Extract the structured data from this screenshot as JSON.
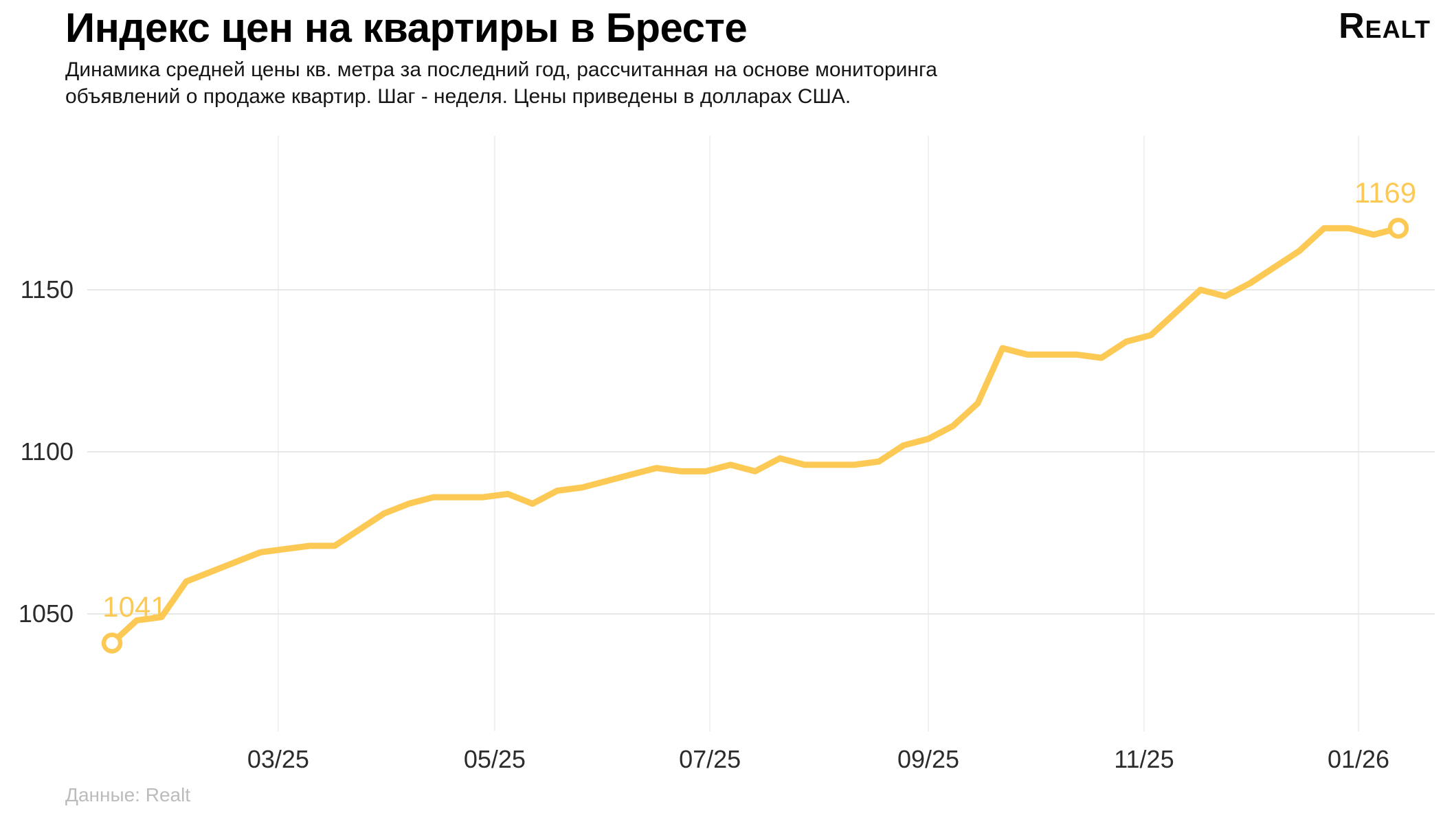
{
  "header": {
    "title": "Индекс цен на квартиры в Бресте",
    "subtitle": "Динамика средней цены кв. метра за последний год, рассчитанная на основе мониторинга объявлений о продаже квартир. Шаг - неделя. Цены приведены в долларах США.",
    "logo": "Realt"
  },
  "footer": {
    "source": "Данные: Realt"
  },
  "chart_data": {
    "type": "line",
    "title": "Индекс цен на квартиры в Бресте",
    "xlabel": "",
    "ylabel": "",
    "step": "неделя",
    "currency": "USD",
    "legend_position": "none",
    "grid": true,
    "ylim": [
      1020,
      1185
    ],
    "y_ticks": [
      1050,
      1100,
      1150
    ],
    "x_ticks": [
      {
        "label": "03/25",
        "pos": 6.72
      },
      {
        "label": "05/25",
        "pos": 15.47
      },
      {
        "label": "07/25",
        "pos": 24.17
      },
      {
        "label": "09/25",
        "pos": 33.0
      },
      {
        "label": "11/25",
        "pos": 41.72
      },
      {
        "label": "01/26",
        "pos": 50.39
      }
    ],
    "series": [
      {
        "name": "Средняя цена кв. метра, USD",
        "values": [
          1041,
          1048,
          1049,
          1060,
          1063,
          1066,
          1069,
          1070,
          1071,
          1071,
          1076,
          1081,
          1084,
          1086,
          1086,
          1086,
          1087,
          1084,
          1088,
          1089,
          1091,
          1093,
          1095,
          1094,
          1094,
          1096,
          1094,
          1098,
          1096,
          1096,
          1096,
          1097,
          1102,
          1104,
          1108,
          1115,
          1132,
          1130,
          1130,
          1130,
          1129,
          1134,
          1136,
          1143,
          1150,
          1148,
          1152,
          1157,
          1162,
          1169,
          1169,
          1167,
          1169
        ]
      }
    ],
    "first_point_label": "1041",
    "last_point_label": "1169",
    "line_color": "#FDC955",
    "marker_fill": "#ffffff",
    "h_grid_color": "#e7e7e7",
    "v_grid_color": "#f0f0f0",
    "tick_label_color": "#2b2b2b"
  }
}
